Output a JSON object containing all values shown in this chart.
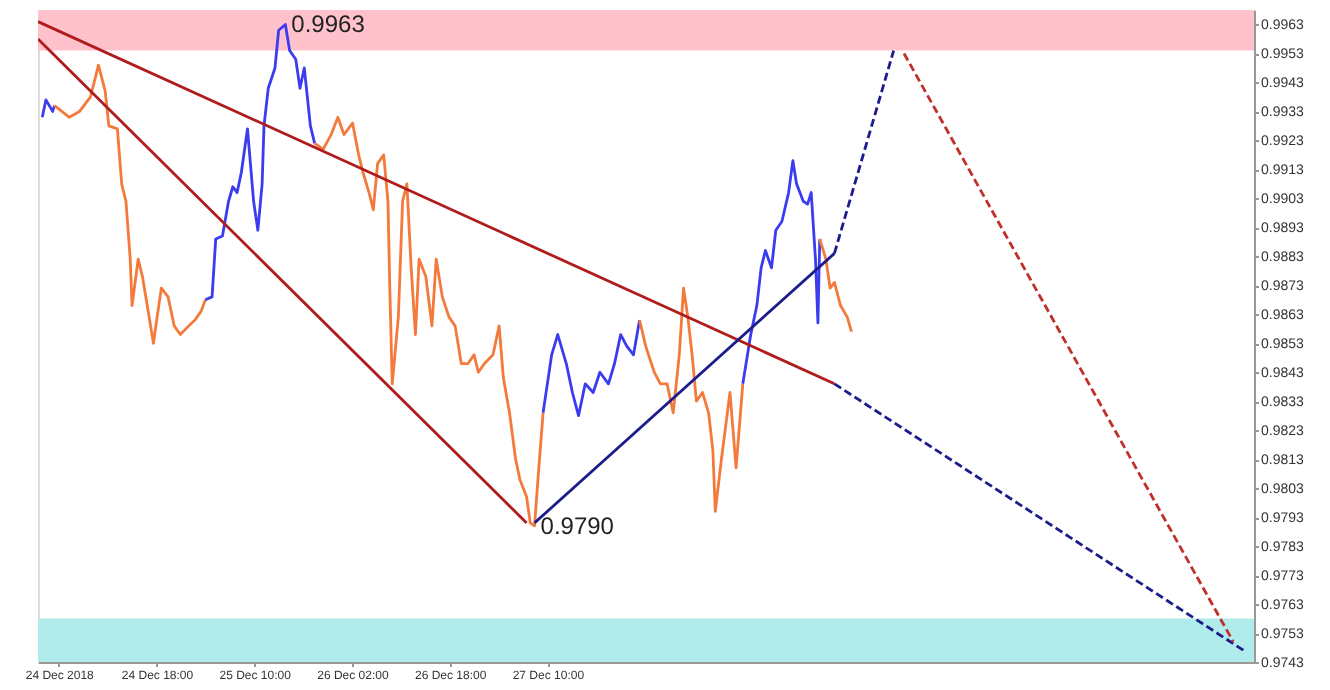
{
  "chart_data": {
    "type": "line",
    "xlim": [
      "2018-12-23T22:36",
      "2019-01-01T05:42"
    ],
    "xticks": [
      {
        "value": "2018-12-24T02:00",
        "label": "24 Dec 2018"
      },
      {
        "value": "2018-12-24T18:00",
        "label": "24 Dec 18:00"
      },
      {
        "value": "2018-12-25T10:00",
        "label": "25 Dec 10:00"
      },
      {
        "value": "2018-12-26T02:00",
        "label": "26 Dec 02:00"
      },
      {
        "value": "2018-12-26T18:00",
        "label": "26 Dec 18:00"
      },
      {
        "value": "2018-12-27T10:00",
        "label": "27 Dec 10:00"
      }
    ],
    "ylim": [
      0.9743,
      0.9968
    ],
    "yticks": [
      0.9963,
      0.9953,
      0.9943,
      0.9933,
      0.9923,
      0.9913,
      0.9903,
      0.9893,
      0.9883,
      0.9873,
      0.9863,
      0.9853,
      0.9843,
      0.9833,
      0.9823,
      0.9813,
      0.9803,
      0.9793,
      0.9783,
      0.9773,
      0.9763,
      0.9753,
      0.9743
    ],
    "marker": "none",
    "bands": [
      {
        "axis": "y",
        "from": 0.9954,
        "to": 0.9968,
        "color": "#ffc1cc"
      },
      {
        "axis": "y",
        "from": 0.9743,
        "to": 0.9758,
        "color": "#b0ecec"
      }
    ],
    "annotations": [
      {
        "text": "0.9963",
        "x": "2018-12-25T15:06",
        "y": 0.9963
      },
      {
        "text": "0.9790",
        "x": "2018-12-27T07:54",
        "y": 0.979
      }
    ],
    "series": [
      {
        "color": "#3b3bf0",
        "x": [
          "2018-12-23T23:18",
          "2018-12-23T23:54",
          "2018-12-24T01:00",
          "2018-12-24T01:18"
        ],
        "values": [
          0.9931,
          0.9937,
          0.9933,
          0.9935
        ]
      },
      {
        "color": "#f47a3c",
        "x": [
          "2018-12-24T01:18",
          "2018-12-24T03:42",
          "2018-12-24T05:24",
          "2018-12-24T07:12",
          "2018-12-24T08:30",
          "2018-12-24T09:36",
          "2018-12-24T10:12",
          "2018-12-24T11:36",
          "2018-12-24T12:18",
          "2018-12-24T13:00",
          "2018-12-24T13:42",
          "2018-12-24T14:00",
          "2018-12-24T15:00",
          "2018-12-24T15:42",
          "2018-12-24T16:48",
          "2018-12-24T17:30",
          "2018-12-24T18:06",
          "2018-12-24T18:48",
          "2018-12-24T19:54",
          "2018-12-24T20:54",
          "2018-12-24T21:54",
          "2018-12-24T23:18",
          "2018-12-25T00:18",
          "2018-12-25T01:18",
          "2018-12-25T02:00"
        ],
        "values": [
          0.9935,
          0.9931,
          0.9933,
          0.9938,
          0.9949,
          0.994,
          0.9928,
          0.9927,
          0.9908,
          0.9902,
          0.9882,
          0.9866,
          0.9882,
          0.9876,
          0.9862,
          0.9853,
          0.9862,
          0.9872,
          0.9869,
          0.9859,
          0.9856,
          0.9859,
          0.9861,
          0.9864,
          0.9868
        ]
      },
      {
        "color": "#3b3bf0",
        "x": [
          "2018-12-25T02:00",
          "2018-12-25T03:06",
          "2018-12-25T03:42",
          "2018-12-25T04:48",
          "2018-12-25T05:48",
          "2018-12-25T06:30",
          "2018-12-25T07:12",
          "2018-12-25T07:54",
          "2018-12-25T08:54",
          "2018-12-25T09:54",
          "2018-12-25T10:36",
          "2018-12-25T11:18",
          "2018-12-25T11:36",
          "2018-12-25T12:18",
          "2018-12-25T13:24",
          "2018-12-25T14:00",
          "2018-12-25T15:06",
          "2018-12-25T15:48",
          "2018-12-25T16:48",
          "2018-12-25T17:30",
          "2018-12-25T18:12",
          "2018-12-25T19:12",
          "2018-12-25T19:54"
        ],
        "values": [
          0.9868,
          0.9869,
          0.9889,
          0.989,
          0.9902,
          0.9907,
          0.9905,
          0.9912,
          0.9927,
          0.9902,
          0.9892,
          0.9908,
          0.9928,
          0.9941,
          0.9948,
          0.9961,
          0.9963,
          0.9954,
          0.9951,
          0.9941,
          0.9948,
          0.9928,
          0.9922
        ]
      },
      {
        "color": "#f47a3c",
        "x": [
          "2018-12-25T19:54",
          "2018-12-25T21:18",
          "2018-12-25T22:36",
          "2018-12-25T23:42",
          "2018-12-26T00:42",
          "2018-12-26T02:06",
          "2018-12-26T03:06",
          "2018-12-26T03:48",
          "2018-12-26T04:48",
          "2018-12-26T05:30",
          "2018-12-26T06:12",
          "2018-12-26T07:12",
          "2018-12-26T07:54",
          "2018-12-26T08:12",
          "2018-12-26T08:36",
          "2018-12-26T09:36",
          "2018-12-26T10:18",
          "2018-12-26T11:00",
          "2018-12-26T11:42",
          "2018-12-26T12:24",
          "2018-12-26T13:00",
          "2018-12-26T14:06",
          "2018-12-26T15:06",
          "2018-12-26T15:48",
          "2018-12-26T16:48",
          "2018-12-26T17:54",
          "2018-12-26T18:54",
          "2018-12-26T19:54",
          "2018-12-26T21:00",
          "2018-12-26T22:00",
          "2018-12-26T22:42",
          "2018-12-26T23:42",
          "2018-12-27T01:06",
          "2018-12-27T02:06",
          "2018-12-27T02:48",
          "2018-12-27T03:48",
          "2018-12-27T04:48",
          "2018-12-27T05:30",
          "2018-12-27T06:36",
          "2018-12-27T07:12",
          "2018-12-27T07:54",
          "2018-12-27T08:36",
          "2018-12-27T09:18"
        ],
        "values": [
          0.9922,
          0.992,
          0.9925,
          0.9931,
          0.9925,
          0.9929,
          0.9918,
          0.9912,
          0.9905,
          0.9899,
          0.9915,
          0.9918,
          0.9902,
          0.9872,
          0.9839,
          0.9862,
          0.9902,
          0.9908,
          0.9879,
          0.9856,
          0.9882,
          0.9876,
          0.9859,
          0.9882,
          0.9869,
          0.9862,
          0.9859,
          0.9846,
          0.9846,
          0.9849,
          0.9843,
          0.9846,
          0.9849,
          0.9859,
          0.9841,
          0.9829,
          0.9813,
          0.9806,
          0.98,
          0.9791,
          0.979,
          0.981,
          0.9829
        ]
      },
      {
        "color": "#3b3bf0",
        "x": [
          "2018-12-27T09:18",
          "2018-12-27T10:42",
          "2018-12-27T11:42",
          "2018-12-27T13:06",
          "2018-12-27T14:06",
          "2018-12-27T15:06",
          "2018-12-27T16:12",
          "2018-12-27T17:30",
          "2018-12-27T18:36",
          "2018-12-27T20:00",
          "2018-12-27T21:00",
          "2018-12-27T22:00",
          "2018-12-27T23:00",
          "2018-12-28T00:06",
          "2018-12-28T01:06"
        ],
        "values": [
          0.9829,
          0.9849,
          0.9856,
          0.9846,
          0.9836,
          0.9828,
          0.9839,
          0.9836,
          0.9843,
          0.9839,
          0.9846,
          0.9856,
          0.9852,
          0.9849,
          0.9861
        ]
      },
      {
        "color": "#f47a3c",
        "x": [
          "2018-12-28T01:06",
          "2018-12-28T02:06",
          "2018-12-28T03:30",
          "2018-12-28T04:30",
          "2018-12-28T05:36",
          "2018-12-28T06:36",
          "2018-12-28T07:36",
          "2018-12-28T08:18",
          "2018-12-28T09:00",
          "2018-12-28T09:42",
          "2018-12-28T10:24",
          "2018-12-28T11:24",
          "2018-12-28T12:24",
          "2018-12-28T13:06",
          "2018-12-28T13:30",
          "2018-12-28T14:30",
          "2018-12-28T15:54",
          "2018-12-28T16:54",
          "2018-12-28T18:00"
        ],
        "values": [
          0.9861,
          0.9852,
          0.9843,
          0.9839,
          0.9839,
          0.9829,
          0.9849,
          0.9872,
          0.9862,
          0.9849,
          0.9833,
          0.9836,
          0.9829,
          0.9816,
          0.9795,
          0.9813,
          0.9836,
          0.981,
          0.9839
        ]
      },
      {
        "color": "#3b3bf0",
        "x": [
          "2018-12-28T18:00",
          "2018-12-28T19:18",
          "2018-12-28T20:18",
          "2018-12-28T21:00",
          "2018-12-28T21:42",
          "2018-12-28T22:42",
          "2018-12-28T23:24",
          "2018-12-29T00:24",
          "2018-12-29T01:30",
          "2018-12-29T02:12",
          "2018-12-29T02:48",
          "2018-12-29T03:54",
          "2018-12-29T04:36",
          "2018-12-29T05:12",
          "2018-12-29T05:54",
          "2018-12-29T06:18",
          "2018-12-29T06:36"
        ],
        "values": [
          0.9839,
          0.9856,
          0.9866,
          0.9879,
          0.9885,
          0.9879,
          0.9892,
          0.9895,
          0.9905,
          0.9916,
          0.9908,
          0.9902,
          0.9901,
          0.9905,
          0.9882,
          0.986,
          0.9889
        ]
      },
      {
        "color": "#f47a3c",
        "x": [
          "2018-12-29T06:36",
          "2018-12-29T07:36",
          "2018-12-29T08:18",
          "2018-12-29T09:00",
          "2018-12-29T10:00",
          "2018-12-29T11:06",
          "2018-12-29T11:48"
        ],
        "values": [
          0.9889,
          0.9882,
          0.9872,
          0.9874,
          0.9866,
          0.9862,
          0.9857
        ]
      },
      {
        "color": "#b01c1c",
        "x": [
          "2018-12-23T22:36",
          "2018-12-29T09:00"
        ],
        "values": [
          0.9964,
          0.9839
        ]
      },
      {
        "color": "#1c1c8c",
        "line_style": "dashed",
        "x": [
          "2018-12-29T09:00",
          "2019-01-01T04:00"
        ],
        "values": [
          0.9839,
          0.9747
        ]
      },
      {
        "color": "#b01c1c",
        "x": [
          "2018-12-23T22:36",
          "2018-12-27T06:36"
        ],
        "values": [
          0.9958,
          0.9791
        ]
      },
      {
        "color": "#1c1c8c",
        "x": [
          "2018-12-27T07:54",
          "2018-12-29T09:00"
        ],
        "values": [
          0.9791,
          0.9884
        ]
      },
      {
        "color": "#1c1c8c",
        "line_style": "dashed",
        "x": [
          "2018-12-29T09:00",
          "2018-12-29T18:42"
        ],
        "values": [
          0.9884,
          0.9954
        ]
      },
      {
        "color": "#c0302b",
        "line_style": "dashed",
        "x": [
          "2018-12-29T20:24",
          "2019-01-01T02:18"
        ],
        "values": [
          0.9953,
          0.975
        ]
      }
    ]
  }
}
